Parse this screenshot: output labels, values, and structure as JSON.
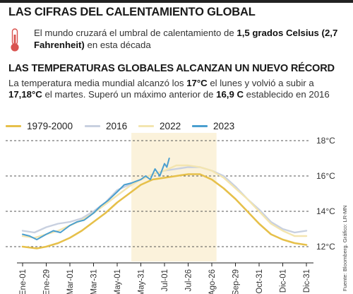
{
  "header": {
    "title": "LAS CIFRAS DEL CALENTAMIENTO GLOBAL",
    "lead_pre": "El mundo cruzará el umbral de calentamiento de",
    "lead_bold": "1,5 grados Celsius (2,7 Fahrenheit)",
    "lead_post": "en esta década",
    "icon": "thermometer-icon"
  },
  "section": {
    "title": "LAS TEMPERATURAS GLOBALES ALCANZAN UN NUEVO RÉCORD",
    "p1": "La temperatura media mundial alcanzó los",
    "b1": "17°C",
    "p2": "el lunes y volvió a subir a",
    "b2": "17,18°C",
    "p3": "el martes. Superó un máximo anterior de",
    "b3": "16,9 C",
    "p4": "establecido en 2016"
  },
  "source": "Fuente: Bloomberg. Gráfico: LR-MN",
  "colors": {
    "s1979": "#e6c04a",
    "s2016": "#c8d0e0",
    "s2022": "#f3e5b0",
    "s2023": "#4a9fcf",
    "band": "#fbf2db",
    "grid": "#555555"
  },
  "chart_data": {
    "type": "line",
    "title": "",
    "xlabel": "",
    "ylabel": "",
    "ylim": [
      11.4,
      18.2
    ],
    "x_ticks": [
      "Ene-01",
      "Ene-29",
      "Mar-01",
      "Mar-31",
      "May-01",
      "May-31",
      "Jul-01",
      "Jul-26",
      "Ago-26",
      "Sep-29",
      "Oct-31",
      "Dic-01",
      "Dic-31"
    ],
    "y_ticks": [
      {
        "value": 18,
        "label": "18°C"
      },
      {
        "value": 16,
        "label": "16°C"
      },
      {
        "value": 14,
        "label": "14°C"
      },
      {
        "value": 12,
        "label": "12°C"
      }
    ],
    "grid": "dashed horizontal",
    "legend_position": "top",
    "series": [
      {
        "name": "1979-2000",
        "color": "#e6c04a",
        "points": [
          [
            0,
            12.0
          ],
          [
            0.6,
            11.9
          ],
          [
            1,
            12.0
          ],
          [
            1.5,
            12.2
          ],
          [
            2,
            12.5
          ],
          [
            2.5,
            12.9
          ],
          [
            3,
            13.4
          ],
          [
            3.5,
            13.9
          ],
          [
            4,
            14.5
          ],
          [
            4.5,
            15.0
          ],
          [
            5,
            15.5
          ],
          [
            5.5,
            15.8
          ],
          [
            6,
            15.9
          ],
          [
            6.5,
            16.0
          ],
          [
            7,
            16.1
          ],
          [
            7.5,
            16.1
          ],
          [
            8,
            15.8
          ],
          [
            8.5,
            15.3
          ],
          [
            9,
            14.7
          ],
          [
            9.5,
            14.0
          ],
          [
            10,
            13.3
          ],
          [
            10.5,
            12.7
          ],
          [
            11,
            12.4
          ],
          [
            11.5,
            12.2
          ],
          [
            12,
            12.1
          ]
        ]
      },
      {
        "name": "2016",
        "color": "#c8d0e0",
        "points": [
          [
            0,
            12.9
          ],
          [
            0.5,
            12.8
          ],
          [
            1,
            13.1
          ],
          [
            1.5,
            13.3
          ],
          [
            2,
            13.4
          ],
          [
            2.5,
            13.6
          ],
          [
            3,
            14.0
          ],
          [
            3.5,
            14.5
          ],
          [
            4,
            15.2
          ],
          [
            4.5,
            15.5
          ],
          [
            5,
            15.8
          ],
          [
            5.5,
            16.1
          ],
          [
            6,
            16.3
          ],
          [
            6.5,
            16.4
          ],
          [
            7,
            16.5
          ],
          [
            7.5,
            16.5
          ],
          [
            8,
            16.3
          ],
          [
            8.5,
            16.0
          ],
          [
            9,
            15.4
          ],
          [
            9.5,
            14.7
          ],
          [
            10,
            14.1
          ],
          [
            10.5,
            13.4
          ],
          [
            11,
            13.0
          ],
          [
            11.5,
            12.8
          ],
          [
            12,
            12.9
          ]
        ]
      },
      {
        "name": "2022",
        "color": "#f3e5b0",
        "points": [
          [
            0,
            12.6
          ],
          [
            0.5,
            12.5
          ],
          [
            1,
            12.7
          ],
          [
            1.5,
            12.9
          ],
          [
            2,
            13.2
          ],
          [
            2.5,
            13.5
          ],
          [
            3,
            13.9
          ],
          [
            3.5,
            14.4
          ],
          [
            4,
            14.9
          ],
          [
            4.5,
            15.4
          ],
          [
            5,
            15.8
          ],
          [
            5.5,
            16.1
          ],
          [
            6,
            16.3
          ],
          [
            6.5,
            16.6
          ],
          [
            7,
            16.6
          ],
          [
            7.5,
            16.5
          ],
          [
            8,
            16.3
          ],
          [
            8.5,
            15.9
          ],
          [
            9,
            15.3
          ],
          [
            9.5,
            14.7
          ],
          [
            10,
            14.0
          ],
          [
            10.5,
            13.3
          ],
          [
            11,
            12.9
          ],
          [
            11.5,
            12.6
          ],
          [
            12,
            12.6
          ]
        ]
      },
      {
        "name": "2023",
        "color": "#4a9fcf",
        "points": [
          [
            0,
            12.7
          ],
          [
            0.3,
            12.6
          ],
          [
            0.6,
            12.4
          ],
          [
            1,
            12.7
          ],
          [
            1.3,
            12.9
          ],
          [
            1.6,
            12.8
          ],
          [
            2,
            13.2
          ],
          [
            2.3,
            13.4
          ],
          [
            2.6,
            13.5
          ],
          [
            3,
            13.9
          ],
          [
            3.3,
            14.3
          ],
          [
            3.6,
            14.6
          ],
          [
            4,
            15.1
          ],
          [
            4.3,
            15.5
          ],
          [
            4.6,
            15.6
          ],
          [
            5,
            15.8
          ],
          [
            5.2,
            16.0
          ],
          [
            5.4,
            15.8
          ],
          [
            5.6,
            16.4
          ],
          [
            5.8,
            16.0
          ],
          [
            6,
            16.7
          ],
          [
            6.1,
            16.5
          ],
          [
            6.2,
            17.0
          ]
        ]
      }
    ]
  }
}
